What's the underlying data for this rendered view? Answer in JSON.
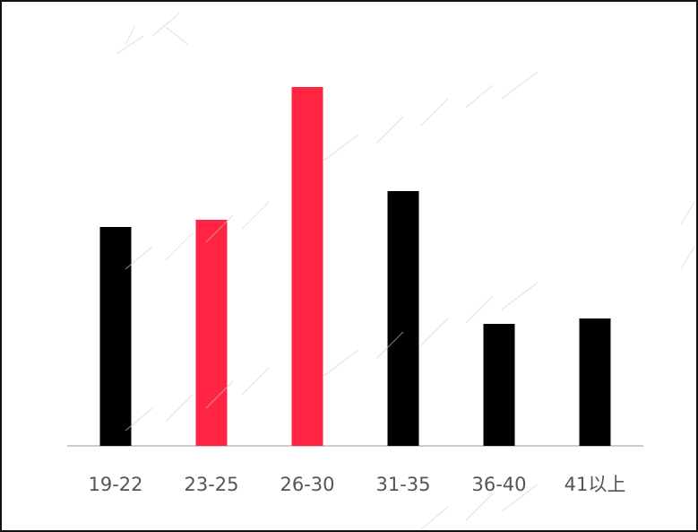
{
  "chart_data": {
    "type": "bar",
    "categories": [
      "19-22",
      "23-25",
      "26-30",
      "31-35",
      "36-40",
      "41以上"
    ],
    "values": [
      61,
      63,
      100,
      71,
      34,
      35.5
    ],
    "ylim": [
      0,
      100
    ],
    "grid": false,
    "legend": "none",
    "colors": [
      "#000000",
      "#ff2442",
      "#ff2442",
      "#000000",
      "#000000",
      "#000000"
    ],
    "axis_color": "#cccccc"
  }
}
